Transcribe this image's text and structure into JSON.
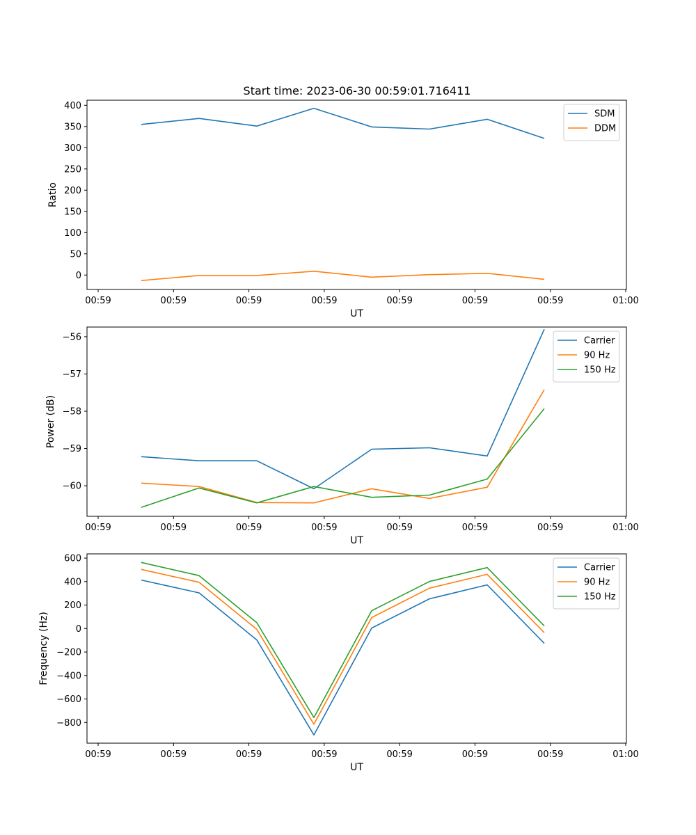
{
  "figure": {
    "title": "Start time: 2023-06-30 00:59:01.716411"
  },
  "chart_data": [
    {
      "type": "line",
      "xlabel": "UT",
      "ylabel": "Ratio",
      "x_tick_labels": [
        "00:59",
        "00:59",
        "00:59",
        "00:59",
        "00:59",
        "00:59",
        "00:59",
        "01:00"
      ],
      "ylim": [
        -34,
        412
      ],
      "y_ticks": [
        0,
        50,
        100,
        150,
        200,
        250,
        300,
        350,
        400
      ],
      "legend_position": "top-right",
      "grid": false,
      "series": [
        {
          "name": "SDM",
          "color": "#1f77b4",
          "values": [
            355,
            369,
            351,
            393,
            349,
            344,
            367,
            322
          ]
        },
        {
          "name": "DDM",
          "color": "#ff7f0e",
          "values": [
            -13,
            -1,
            -1,
            9,
            -5,
            1,
            4,
            -10
          ]
        }
      ]
    },
    {
      "type": "line",
      "xlabel": "UT",
      "ylabel": "Power (dB)",
      "x_tick_labels": [
        "00:59",
        "00:59",
        "00:59",
        "00:59",
        "00:59",
        "00:59",
        "00:59",
        "01:00"
      ],
      "ylim": [
        -60.82,
        -55.74
      ],
      "y_ticks": [
        -60,
        -59,
        -58,
        -57,
        -56
      ],
      "y_tick_labels": [
        "−60",
        "−59",
        "−58",
        "−57",
        "−56"
      ],
      "legend_position": "top-right",
      "grid": false,
      "series": [
        {
          "name": "Carrier",
          "color": "#1f77b4",
          "values": [
            -59.22,
            -59.33,
            -59.33,
            -60.08,
            -59.02,
            -58.98,
            -59.2,
            -55.8
          ]
        },
        {
          "name": "90 Hz",
          "color": "#ff7f0e",
          "values": [
            -59.93,
            -60.02,
            -60.45,
            -60.46,
            -60.08,
            -60.34,
            -60.04,
            -57.42
          ]
        },
        {
          "name": "150 Hz",
          "color": "#2ca02c",
          "values": [
            -60.58,
            -60.06,
            -60.46,
            -60.02,
            -60.31,
            -60.25,
            -59.82,
            -57.93
          ]
        }
      ]
    },
    {
      "type": "line",
      "xlabel": "UT",
      "ylabel": "Frequency (Hz)",
      "x_tick_labels": [
        "00:59",
        "00:59",
        "00:59",
        "00:59",
        "00:59",
        "00:59",
        "00:59",
        "01:00"
      ],
      "ylim": [
        -976,
        636
      ],
      "y_ticks": [
        -800,
        -600,
        -400,
        -200,
        0,
        200,
        400,
        600
      ],
      "y_tick_labels": [
        "−800",
        "−600",
        "−400",
        "−200",
        "0",
        "200",
        "400",
        "600"
      ],
      "legend_position": "top-right",
      "grid": false,
      "series": [
        {
          "name": "Carrier",
          "color": "#1f77b4",
          "values": [
            413,
            304,
            -97,
            -906,
            4,
            253,
            372,
            -126
          ]
        },
        {
          "name": "90 Hz",
          "color": "#ff7f0e",
          "values": [
            504,
            394,
            -7,
            -815,
            94,
            344,
            462,
            -35
          ]
        },
        {
          "name": "150 Hz",
          "color": "#2ca02c",
          "values": [
            563,
            451,
            50,
            -758,
            152,
            401,
            519,
            22
          ]
        }
      ]
    }
  ]
}
